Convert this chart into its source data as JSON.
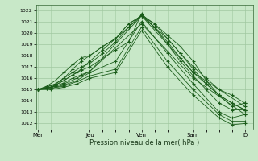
{
  "xlabel": "Pression niveau de la mer( hPa )",
  "bg_color": "#c8e8c8",
  "grid_color": "#a0c8a0",
  "line_color": "#1a5c1a",
  "ylim": [
    1011.5,
    1022.5
  ],
  "yticks": [
    1012,
    1013,
    1014,
    1015,
    1016,
    1017,
    1018,
    1019,
    1020,
    1021,
    1022
  ],
  "xtick_labels": [
    "Mer",
    "Jeu",
    "Ven",
    "Sam",
    "D"
  ],
  "xtick_pos": [
    0,
    24,
    48,
    72,
    96
  ],
  "xlim": [
    -1,
    100
  ],
  "lines": [
    [
      0,
      1015.0,
      4,
      1015.1,
      8,
      1015.3,
      12,
      1015.6,
      16,
      1016.0,
      20,
      1016.3,
      24,
      1016.6,
      48,
      1021.5,
      72,
      1016.5,
      96,
      1013.5
    ],
    [
      0,
      1015.0,
      4,
      1015.1,
      8,
      1015.4,
      12,
      1015.8,
      16,
      1016.3,
      20,
      1016.7,
      24,
      1017.0,
      36,
      1018.5,
      42,
      1019.2,
      48,
      1021.7,
      54,
      1020.5,
      60,
      1019.0,
      66,
      1017.5,
      72,
      1016.2,
      78,
      1015.0,
      84,
      1013.8,
      90,
      1013.2,
      96,
      1013.2
    ],
    [
      0,
      1015.0,
      4,
      1015.2,
      8,
      1015.5,
      12,
      1016.0,
      16,
      1016.5,
      20,
      1017.0,
      24,
      1017.3,
      30,
      1018.2,
      36,
      1019.2,
      42,
      1020.5,
      48,
      1021.6,
      54,
      1020.8,
      60,
      1019.8,
      66,
      1018.8,
      72,
      1017.5,
      78,
      1015.8,
      84,
      1014.5,
      90,
      1013.5,
      96,
      1013.8
    ],
    [
      0,
      1015.0,
      6,
      1015.2,
      12,
      1015.5,
      18,
      1016.0,
      24,
      1016.6,
      48,
      1020.8,
      72,
      1016.0,
      96,
      1012.8
    ],
    [
      0,
      1015.0,
      6,
      1015.1,
      12,
      1015.3,
      18,
      1015.7,
      24,
      1016.2,
      36,
      1016.8,
      48,
      1020.5,
      60,
      1017.5,
      72,
      1015.0,
      84,
      1012.8,
      90,
      1012.2,
      96,
      1012.2
    ],
    [
      0,
      1015.0,
      6,
      1015.0,
      12,
      1015.2,
      18,
      1015.5,
      24,
      1016.0,
      36,
      1016.5,
      48,
      1020.2,
      60,
      1017.0,
      72,
      1014.5,
      84,
      1012.5,
      90,
      1011.9,
      96,
      1012.0
    ],
    [
      0,
      1015.0,
      8,
      1015.5,
      12,
      1016.0,
      16,
      1016.8,
      20,
      1017.5,
      24,
      1018.0,
      30,
      1018.8,
      36,
      1019.5,
      42,
      1020.5,
      48,
      1021.5,
      54,
      1020.8,
      60,
      1019.5,
      66,
      1018.2,
      72,
      1017.0,
      78,
      1016.0,
      84,
      1015.0,
      90,
      1014.5,
      96,
      1013.8
    ],
    [
      0,
      1015.0,
      6,
      1015.2,
      12,
      1015.8,
      18,
      1016.5,
      24,
      1017.5,
      30,
      1018.5,
      36,
      1019.5,
      42,
      1020.8,
      48,
      1021.5,
      54,
      1020.5,
      60,
      1019.2,
      66,
      1017.8,
      72,
      1016.5,
      78,
      1015.5,
      84,
      1014.5,
      90,
      1013.8,
      96,
      1013.2
    ],
    [
      0,
      1015.0,
      4,
      1015.3,
      8,
      1015.8,
      12,
      1016.5,
      16,
      1017.2,
      20,
      1017.8,
      24,
      1018.0,
      30,
      1018.8,
      36,
      1019.5,
      42,
      1020.8,
      48,
      1021.5,
      54,
      1020.5,
      60,
      1019.5,
      66,
      1018.2,
      72,
      1016.8,
      78,
      1015.5,
      84,
      1014.5,
      90,
      1013.8,
      96,
      1013.2
    ],
    [
      0,
      1015.0,
      6,
      1015.1,
      12,
      1015.4,
      18,
      1015.8,
      24,
      1016.5,
      36,
      1017.5,
      48,
      1021.0,
      60,
      1018.2,
      72,
      1015.5,
      84,
      1013.0,
      90,
      1012.5,
      96,
      1012.8
    ]
  ]
}
